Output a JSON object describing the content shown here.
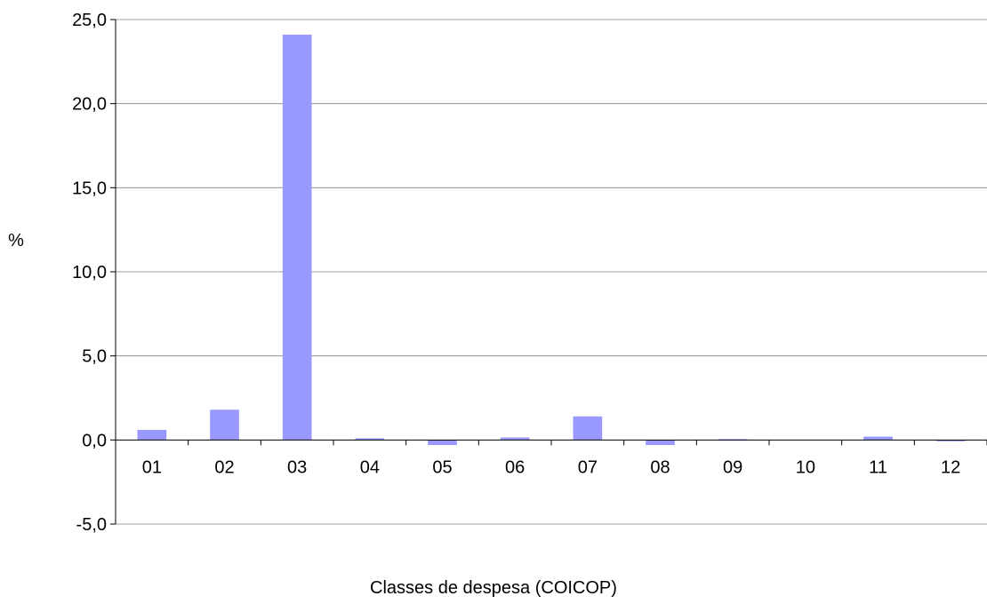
{
  "chart_data": {
    "type": "bar",
    "categories": [
      "01",
      "02",
      "03",
      "04",
      "05",
      "06",
      "07",
      "08",
      "09",
      "10",
      "11",
      "12"
    ],
    "values": [
      0.6,
      1.8,
      24.1,
      0.1,
      -0.3,
      0.15,
      1.4,
      -0.3,
      0.05,
      0.0,
      0.2,
      -0.05
    ],
    "xlabel": "Classes de despesa (COICOP)",
    "ylabel": "%",
    "ylim": [
      -5,
      25
    ],
    "yticks": [
      -5,
      0,
      5,
      10,
      15,
      20,
      25
    ],
    "ytick_labels": [
      "-5,0",
      "0,0",
      "5,0",
      "10,0",
      "15,0",
      "20,0",
      "25,0"
    ],
    "grid": true,
    "legend": "none",
    "bar_color": "#9999ff",
    "gridline_color": "#808080",
    "axis_color": "#000000"
  }
}
